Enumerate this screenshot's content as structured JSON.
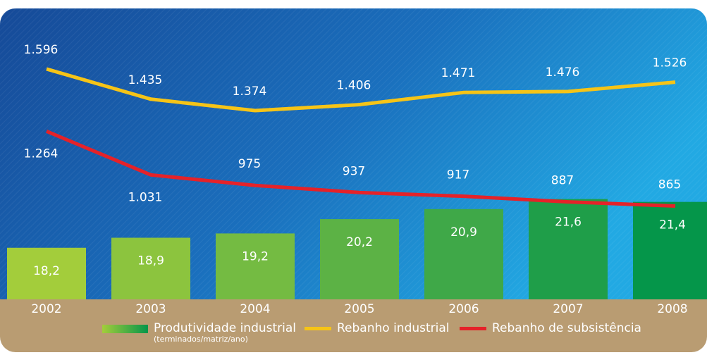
{
  "chart_data": {
    "type": "bar",
    "categories": [
      "2002",
      "2003",
      "2004",
      "2005",
      "2006",
      "2007",
      "2008"
    ],
    "series": [
      {
        "name": "Produtividade industrial",
        "unit": "(terminados/matriz/ano)",
        "colors": [
          "#a3cd3b",
          "#8cc43e",
          "#74bb42",
          "#5cb245",
          "#3fa848",
          "#1f9e49",
          "#05964a"
        ],
        "values": [
          18.2,
          18.9,
          19.2,
          20.2,
          20.9,
          21.6,
          21.4
        ],
        "value_labels": [
          "18,2",
          "18,9",
          "19,2",
          "20,2",
          "20,9",
          "21,6",
          "21,4"
        ]
      },
      {
        "name": "Rebanho industrial",
        "type": "line",
        "axis": "y2",
        "color": "#f6c417",
        "values": [
          1596,
          1435,
          1374,
          1406,
          1471,
          1476,
          1526
        ],
        "value_labels": [
          "1.596",
          "1.435",
          "1.374",
          "1.406",
          "1.471",
          "1.476",
          "1.526"
        ]
      },
      {
        "name": "Rebanho de subsistência",
        "type": "line",
        "axis": "y2",
        "color": "#e52229",
        "values": [
          1264,
          1031,
          975,
          937,
          917,
          887,
          865
        ],
        "value_labels": [
          "1.264",
          "1.031",
          "975",
          "937",
          "917",
          "887",
          "865"
        ]
      }
    ],
    "ylim": [
      14.6,
      34.9
    ],
    "y2lim": [
      367,
      1919
    ]
  }
}
